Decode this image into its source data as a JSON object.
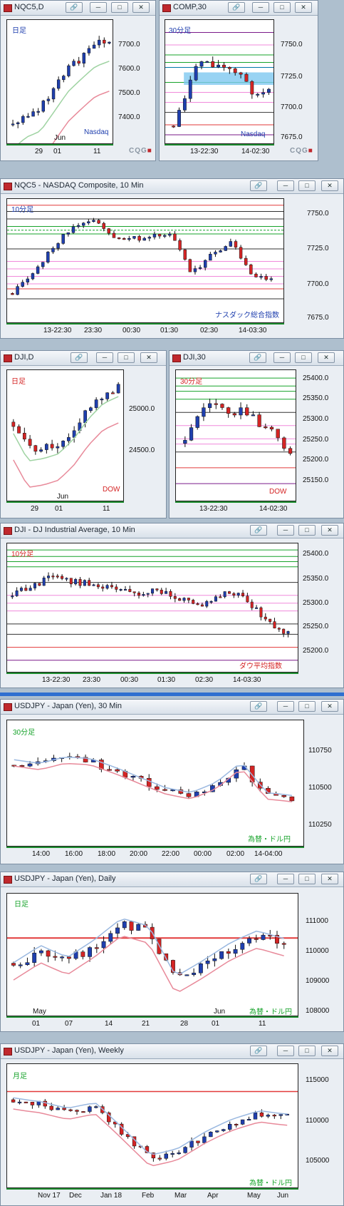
{
  "title_suffix_daily": "日足",
  "windows": [
    {
      "id": "nqc5d",
      "title": "NQC5,D",
      "corner": "日足",
      "note": "Nasdaq",
      "ylabels": [
        "7700.0",
        "7600.0",
        "7500.0",
        "7400.0"
      ],
      "xlabels": [
        "29",
        "01",
        "11"
      ],
      "xextra": "Jun"
    },
    {
      "id": "comp30",
      "title": "COMP,30",
      "corner": "30分足",
      "note": "Nasdaq",
      "ylabels": [
        "7750.0",
        "7725.0",
        "7700.0",
        "7675.0"
      ],
      "xlabels": [
        "13-22:30",
        "14-02:30"
      ]
    },
    {
      "id": "nqc5",
      "title": "NQC5 - NASDAQ Composite, 10 Min",
      "corner": "10分足",
      "note": "ナスダック総合指数",
      "ylabels": [
        "7750.0",
        "7725.0",
        "7700.0",
        "7675.0"
      ],
      "xlabels": [
        "13-22:30",
        "23:30",
        "00:30",
        "01:30",
        "02:30",
        "14-03:30"
      ]
    },
    {
      "id": "djid",
      "title": "DJI,D",
      "corner": "日足",
      "note": "DOW",
      "ylabels": [
        "25000.0",
        "24500.0"
      ],
      "xlabels": [
        "29",
        "01",
        "11"
      ],
      "xextra": "Jun"
    },
    {
      "id": "dji30",
      "title": "DJI,30",
      "corner": "30分足",
      "note": "DOW",
      "ylabels": [
        "25400.0",
        "25350.0",
        "25300.0",
        "25250.0",
        "25200.0",
        "25150.0"
      ],
      "xlabels": [
        "13-22:30",
        "14-02:30"
      ]
    },
    {
      "id": "dji10",
      "title": "DJI - DJ Industrial Average, 10 Min",
      "corner": "10分足",
      "note": "ダウ平均指数",
      "ylabels": [
        "25400.0",
        "25350.0",
        "25300.0",
        "25250.0",
        "25200.0"
      ],
      "xlabels": [
        "13-22:30",
        "23:30",
        "00:30",
        "01:30",
        "02:30",
        "14-03:30"
      ]
    },
    {
      "id": "usdjpy30",
      "title": "USDJPY - Japan (Yen), 30 Min",
      "corner": "30分足",
      "note": "為替・ドル円",
      "ylabels": [
        "110750",
        "110500",
        "110250"
      ],
      "xlabels": [
        "14:00",
        "16:00",
        "18:00",
        "20:00",
        "22:00",
        "00:00",
        "02:00",
        "14-04:00"
      ]
    },
    {
      "id": "usdjpyd",
      "title": "USDJPY - Japan (Yen), Daily",
      "corner": "日足",
      "note": "為替・ドル円",
      "ylabels": [
        "111000",
        "110000",
        "109000",
        "108000"
      ],
      "xlabels": [
        "01",
        "07",
        "14",
        "21",
        "28",
        "01",
        "11"
      ],
      "xextra": "May",
      "xextra2": "Jun"
    },
    {
      "id": "usdjpyw",
      "title": "USDJPY - Japan (Yen), Weekly",
      "corner": "月足",
      "note": "為替・ドル円",
      "ylabels": [
        "115000",
        "110000",
        "105000"
      ],
      "xlabels": [
        "Nov 17",
        "Dec",
        "Jan 18",
        "Feb",
        "Mar",
        "Apr",
        "May",
        "Jun"
      ]
    }
  ],
  "brand": "CQG",
  "colors": {
    "up": "#1f3fae",
    "down": "#d42424",
    "green": "#16a32a",
    "purple": "#7a1a8a",
    "pink": "#f08adb",
    "maPink": "#e88a9a",
    "maGreen": "#9fd3a2",
    "maBlue": "#9ab8e0",
    "maRed": "#e23a3a"
  }
}
